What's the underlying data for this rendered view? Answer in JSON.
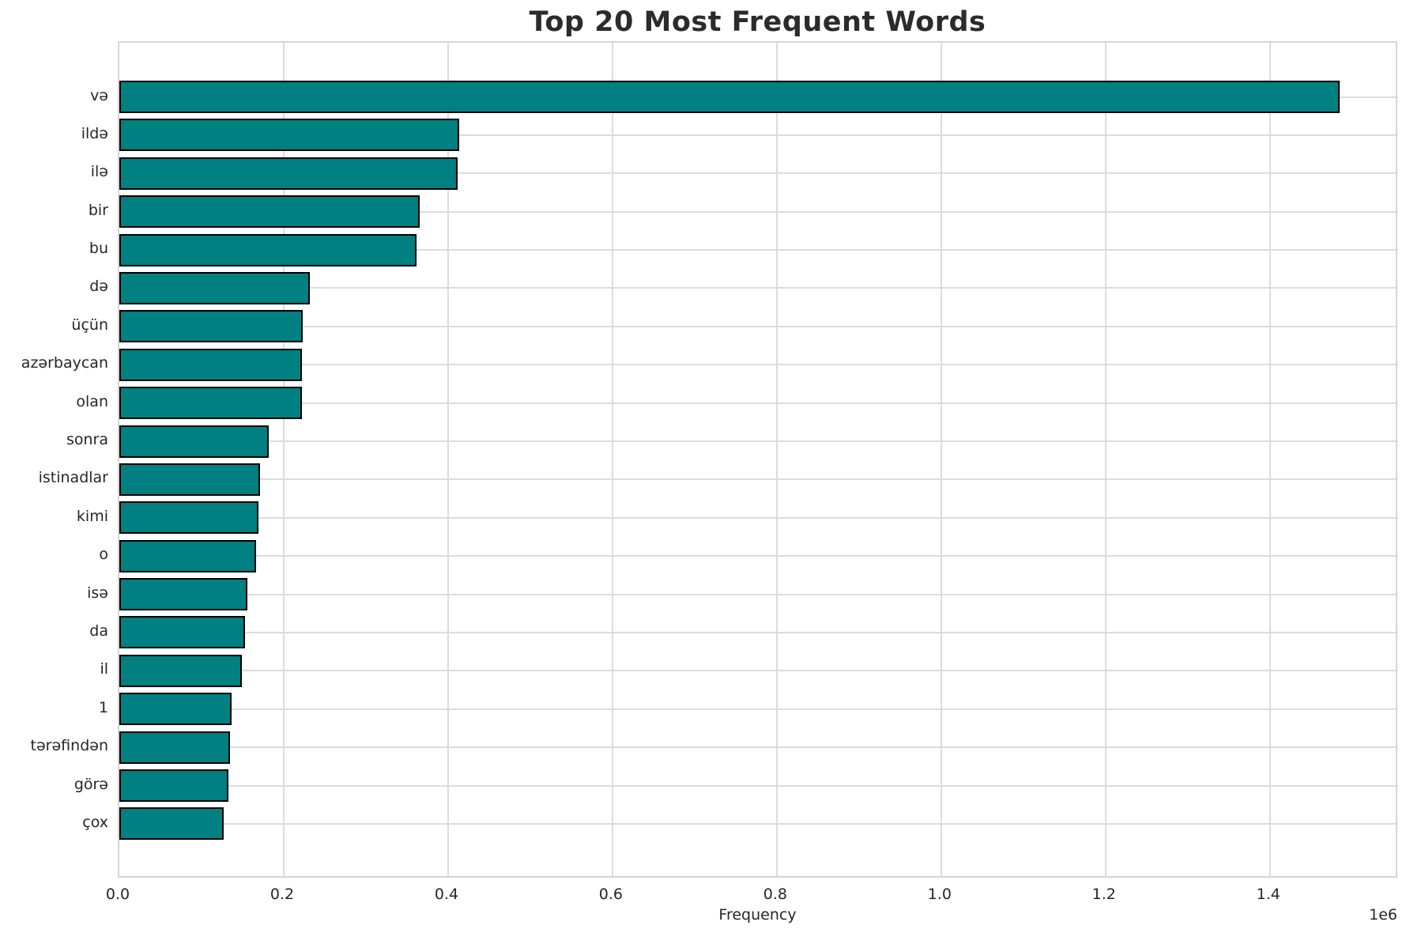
{
  "chart_data": {
    "type": "bar",
    "orientation": "horizontal",
    "title": "Top 20 Most Frequent Words",
    "xlabel": "Frequency",
    "ylabel": "",
    "offset_label": "1e6",
    "categories": [
      "və",
      "ildə",
      "ilə",
      "bir",
      "bu",
      "də",
      "üçün",
      "azərbaycan",
      "olan",
      "sonra",
      "istinadlar",
      "kimi",
      "o",
      "isə",
      "da",
      "il",
      "1",
      "tərəfindən",
      "görə",
      "çox"
    ],
    "values": [
      1485000,
      414000,
      412000,
      365000,
      362000,
      232000,
      223000,
      222500,
      222000,
      182000,
      171000,
      169000,
      166000,
      156000,
      153000,
      149000,
      137000,
      135000,
      133000,
      127000
    ],
    "xlim": [
      0,
      1557000
    ],
    "xticks": [
      0,
      200000,
      400000,
      600000,
      800000,
      1000000,
      1200000,
      1400000
    ],
    "xtick_labels": [
      "0.0",
      "0.2",
      "0.4",
      "0.6",
      "0.8",
      "1.0",
      "1.2",
      "1.4"
    ],
    "grid": true,
    "legend": null,
    "colors": {
      "bar_fill": "#008081",
      "bar_edge": "#000000",
      "grid": "#dcdcdc",
      "spine": "#d5d5d5",
      "tick_text": "#262626",
      "title_text": "#2b2b2b",
      "background": "#ffffff"
    }
  }
}
